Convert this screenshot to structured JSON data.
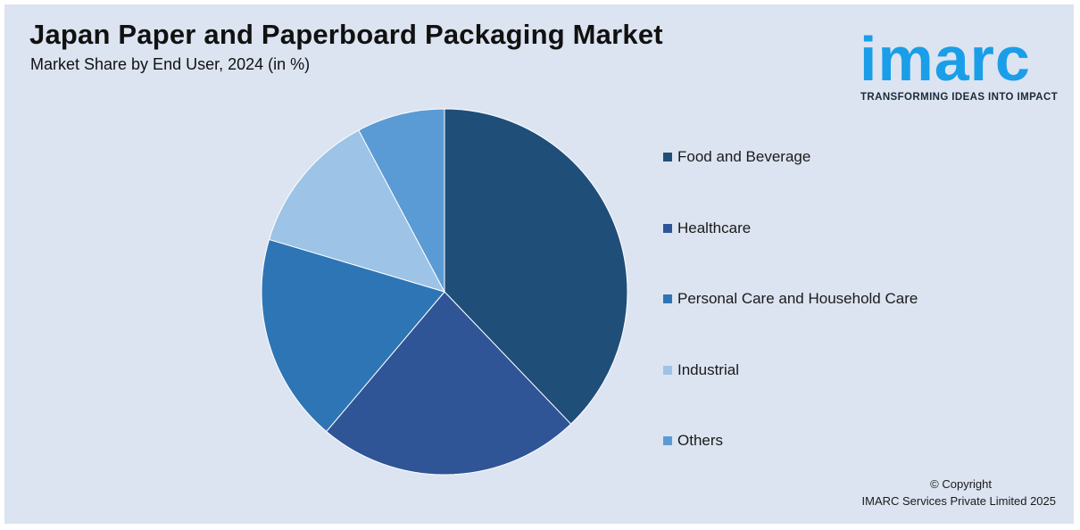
{
  "header": {
    "title": "Japan Paper and Paperboard Packaging Market",
    "subtitle": "Market Share by End User, 2024 (in %)"
  },
  "logo": {
    "word": "imarc",
    "tagline": "TRANSFORMING IDEAS INTO IMPACT",
    "color": "#1a9ee8"
  },
  "chart_data": {
    "type": "pie",
    "title": "Japan Paper and Paperboard Packaging Market",
    "subtitle": "Market Share by End User, 2024 (in %)",
    "start": "12 o'clock",
    "direction": "clockwise",
    "legend_position": "right",
    "slices": [
      {
        "name": "Food and Beverage",
        "value": 39,
        "color": "#1f4e79"
      },
      {
        "name": "Healthcare",
        "value": 24,
        "color": "#2f5597"
      },
      {
        "name": "Personal Care and Household Care",
        "value": 19,
        "color": "#2e75b6"
      },
      {
        "name": "Industrial",
        "value": 13,
        "color": "#9dc3e6"
      },
      {
        "name": "Others",
        "value": 8,
        "color": "#5b9bd5"
      }
    ]
  },
  "footer": {
    "copyright": "© Copyright",
    "company": "IMARC Services Private Limited 2025"
  }
}
